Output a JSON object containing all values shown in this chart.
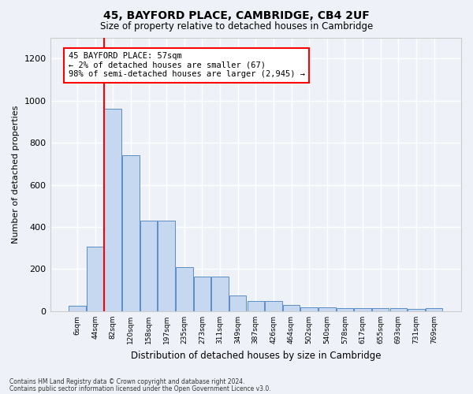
{
  "title1": "45, BAYFORD PLACE, CAMBRIDGE, CB4 2UF",
  "title2": "Size of property relative to detached houses in Cambridge",
  "xlabel": "Distribution of detached houses by size in Cambridge",
  "ylabel": "Number of detached properties",
  "bar_color": "#c5d8f0",
  "bar_edge_color": "#5b8ec4",
  "categories": [
    "6sqm",
    "44sqm",
    "82sqm",
    "120sqm",
    "158sqm",
    "197sqm",
    "235sqm",
    "273sqm",
    "311sqm",
    "349sqm",
    "387sqm",
    "426sqm",
    "464sqm",
    "502sqm",
    "540sqm",
    "578sqm",
    "617sqm",
    "655sqm",
    "693sqm",
    "731sqm",
    "769sqm"
  ],
  "values": [
    25,
    305,
    960,
    740,
    430,
    430,
    210,
    165,
    165,
    75,
    48,
    48,
    30,
    18,
    18,
    15,
    15,
    15,
    15,
    10,
    15
  ],
  "ylim": [
    0,
    1300
  ],
  "yticks": [
    0,
    200,
    400,
    600,
    800,
    1000,
    1200
  ],
  "property_line_x": 1.5,
  "annotation_title": "45 BAYFORD PLACE: 57sqm",
  "annotation_line1": "← 2% of detached houses are smaller (67)",
  "annotation_line2": "98% of semi-detached houses are larger (2,945) →",
  "annotation_box_color": "white",
  "annotation_box_edge": "red",
  "property_line_color": "red",
  "footer1": "Contains HM Land Registry data © Crown copyright and database right 2024.",
  "footer2": "Contains public sector information licensed under the Open Government Licence v3.0.",
  "background_color": "#eef2f8",
  "grid_color": "white"
}
